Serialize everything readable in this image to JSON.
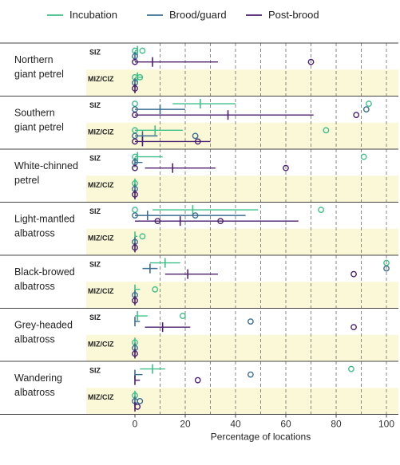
{
  "chart_data": {
    "type": "scatter",
    "title": "",
    "xlabel": "Percentage of locations",
    "xlim": [
      0,
      100
    ],
    "xticks": [
      0,
      20,
      40,
      60,
      80,
      100
    ],
    "grid": "dashed vertical gridlines every 10",
    "legend_position": "top",
    "colors": {
      "Incubation": "#3ec08a",
      "Brood/guard": "#3b6e92",
      "Post-brood": "#4b1e6e",
      "band": "#fbf8d8"
    },
    "series_names": [
      "Incubation",
      "Brood/guard",
      "Post-brood"
    ],
    "zones": [
      "SIZ",
      "MIZ/CIZ"
    ],
    "species": [
      {
        "name": "Northern giant petrel",
        "zones": [
          {
            "zone": "SIZ",
            "series": [
              {
                "name": "Incubation",
                "mean": 1,
                "low": 0,
                "high": 1,
                "points": [
                  0,
                  3
                ]
              },
              {
                "name": "Brood/guard",
                "mean": 0,
                "low": 0,
                "high": 0,
                "points": [
                  0
                ]
              },
              {
                "name": "Post-brood",
                "mean": 7,
                "low": 0,
                "high": 33,
                "points": [
                  0,
                  70
                ]
              }
            ]
          },
          {
            "zone": "MIZ/CIZ",
            "series": [
              {
                "name": "Incubation",
                "mean": 1,
                "low": 0,
                "high": 3,
                "points": [
                  0,
                  2
                ]
              },
              {
                "name": "Brood/guard",
                "mean": 0,
                "low": 0,
                "high": 0,
                "points": [
                  0
                ]
              },
              {
                "name": "Post-brood",
                "mean": 0,
                "low": 0,
                "high": 0,
                "points": [
                  0
                ]
              }
            ]
          }
        ]
      },
      {
        "name": "Southern giant petrel",
        "zones": [
          {
            "zone": "SIZ",
            "series": [
              {
                "name": "Incubation",
                "mean": 26,
                "low": 15,
                "high": 40,
                "points": [
                  0,
                  93
                ]
              },
              {
                "name": "Brood/guard",
                "mean": 10,
                "low": 0,
                "high": 20,
                "points": [
                  0,
                  92
                ]
              },
              {
                "name": "Post-brood",
                "mean": 37,
                "low": 0,
                "high": 71,
                "points": [
                  0,
                  88
                ]
              }
            ]
          },
          {
            "zone": "MIZ/CIZ",
            "series": [
              {
                "name": "Incubation",
                "mean": 8,
                "low": 0,
                "high": 19,
                "points": [
                  0,
                  76
                ]
              },
              {
                "name": "Brood/guard",
                "mean": 3,
                "low": 0,
                "high": 9,
                "points": [
                  0,
                  24
                ]
              },
              {
                "name": "Post-brood",
                "mean": 3,
                "low": 0,
                "high": 30,
                "points": [
                  0,
                  25
                ]
              }
            ]
          }
        ]
      },
      {
        "name": "White-chinned petrel",
        "zones": [
          {
            "zone": "SIZ",
            "series": [
              {
                "name": "Incubation",
                "mean": 1,
                "low": 0,
                "high": 11,
                "points": [
                  0,
                  91
                ]
              },
              {
                "name": "Brood/guard",
                "mean": 0,
                "low": 0,
                "high": 3,
                "points": [
                  0
                ]
              },
              {
                "name": "Post-brood",
                "mean": 15,
                "low": 4,
                "high": 32,
                "points": [
                  0,
                  60
                ]
              }
            ]
          },
          {
            "zone": "MIZ/CIZ",
            "series": [
              {
                "name": "Incubation",
                "mean": 0,
                "low": 0,
                "high": 0,
                "points": [
                  0
                ]
              },
              {
                "name": "Brood/guard",
                "mean": 0,
                "low": 0,
                "high": 0,
                "points": [
                  0
                ]
              },
              {
                "name": "Post-brood",
                "mean": 0,
                "low": 0,
                "high": 0,
                "points": [
                  0
                ]
              }
            ]
          }
        ]
      },
      {
        "name": "Light-mantled albatross",
        "zones": [
          {
            "zone": "SIZ",
            "series": [
              {
                "name": "Incubation",
                "mean": 23,
                "low": 7,
                "high": 49,
                "points": [
                  0,
                  74
                ]
              },
              {
                "name": "Brood/guard",
                "mean": 5,
                "low": 0,
                "high": 44,
                "points": [
                  0,
                  24
                ]
              },
              {
                "name": "Post-brood",
                "mean": 18,
                "low": 0,
                "high": 65,
                "points": [
                  9,
                  34
                ]
              }
            ]
          },
          {
            "zone": "MIZ/CIZ",
            "series": [
              {
                "name": "Incubation",
                "mean": 0,
                "low": 0,
                "high": 1,
                "points": [
                  3
                ]
              },
              {
                "name": "Brood/guard",
                "mean": 0,
                "low": 0,
                "high": 0,
                "points": [
                  0
                ]
              },
              {
                "name": "Post-brood",
                "mean": 0,
                "low": 0,
                "high": 0,
                "points": [
                  0
                ]
              }
            ]
          }
        ]
      },
      {
        "name": "Black-browed albatross",
        "zones": [
          {
            "zone": "SIZ",
            "series": [
              {
                "name": "Incubation",
                "mean": 12,
                "low": 6,
                "high": 18,
                "points": [
                  100
                ]
              },
              {
                "name": "Brood/guard",
                "mean": 6,
                "low": 3,
                "high": 9,
                "points": [
                  100
                ]
              },
              {
                "name": "Post-brood",
                "mean": 21,
                "low": 12,
                "high": 33,
                "points": [
                  87
                ]
              }
            ]
          },
          {
            "zone": "MIZ/CIZ",
            "series": [
              {
                "name": "Incubation",
                "mean": 0,
                "low": 0,
                "high": 2,
                "points": [
                  8
                ]
              },
              {
                "name": "Brood/guard",
                "mean": 0,
                "low": 0,
                "high": 0,
                "points": [
                  0
                ]
              },
              {
                "name": "Post-brood",
                "mean": 0,
                "low": 0,
                "high": 0,
                "points": [
                  0
                ]
              }
            ]
          }
        ]
      },
      {
        "name": "Grey-headed albatross",
        "zones": [
          {
            "zone": "SIZ",
            "series": [
              {
                "name": "Incubation",
                "mean": 1,
                "low": 0,
                "high": 5,
                "points": [
                  19
                ]
              },
              {
                "name": "Brood/guard",
                "mean": 0,
                "low": 0,
                "high": 2,
                "points": [
                  46
                ]
              },
              {
                "name": "Post-brood",
                "mean": 11,
                "low": 4,
                "high": 22,
                "points": [
                  87
                ]
              }
            ]
          },
          {
            "zone": "MIZ/CIZ",
            "series": [
              {
                "name": "Incubation",
                "mean": 0,
                "low": 0,
                "high": 0,
                "points": [
                  0
                ]
              },
              {
                "name": "Brood/guard",
                "mean": 0,
                "low": 0,
                "high": 0,
                "points": [
                  0
                ]
              },
              {
                "name": "Post-brood",
                "mean": 0,
                "low": 0,
                "high": 0,
                "points": [
                  0
                ]
              }
            ]
          }
        ]
      },
      {
        "name": "Wandering albatross",
        "zones": [
          {
            "zone": "SIZ",
            "series": [
              {
                "name": "Incubation",
                "mean": 7,
                "low": 2,
                "high": 12,
                "points": [
                  86
                ]
              },
              {
                "name": "Brood/guard",
                "mean": 0,
                "low": 0,
                "high": 3,
                "points": [
                  46
                ]
              },
              {
                "name": "Post-brood",
                "mean": 0,
                "low": 0,
                "high": 2,
                "points": [
                  25
                ]
              }
            ]
          },
          {
            "zone": "MIZ/CIZ",
            "series": [
              {
                "name": "Incubation",
                "mean": 0,
                "low": 0,
                "high": 0,
                "points": [
                  0
                ]
              },
              {
                "name": "Brood/guard",
                "mean": 0,
                "low": 0,
                "high": 0,
                "points": [
                  0,
                  2
                ]
              },
              {
                "name": "Post-brood",
                "mean": 0,
                "low": 0,
                "high": 0,
                "points": [
                  1
                ]
              }
            ]
          }
        ]
      }
    ]
  }
}
